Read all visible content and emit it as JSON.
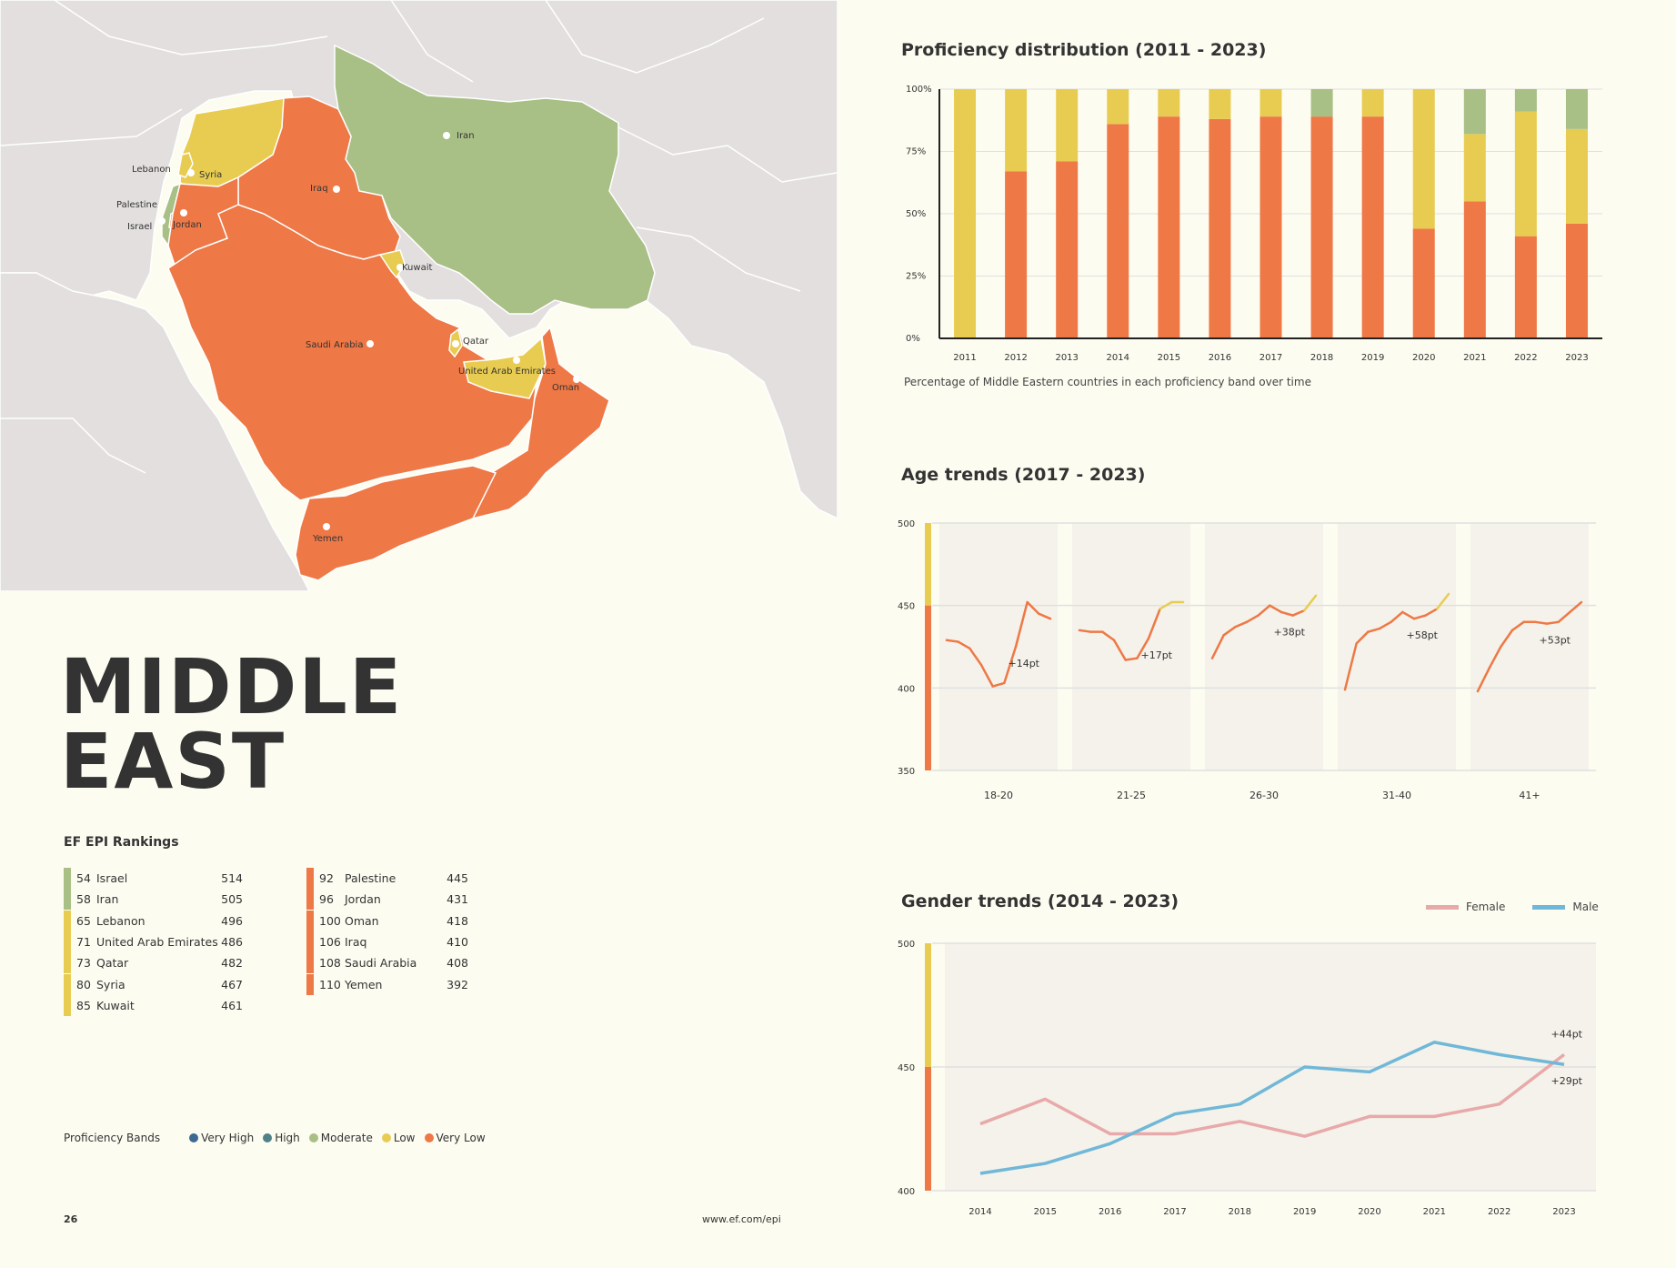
{
  "colors": {
    "very_high": "#3d6a92",
    "high": "#4f8189",
    "moderate": "#a8bf85",
    "low": "#e8cc52",
    "very_low": "#ee7846",
    "land": "#e3dfdf",
    "sea": "#fdfcf1",
    "female": "#e8a9aa",
    "male": "#70b7d8",
    "grid": "#e0e0e0",
    "panel": "#f4f2ea"
  },
  "region_title": [
    "MIDDLE",
    "EAST"
  ],
  "map": {
    "labels": [
      "Iran",
      "Lebanon",
      "Syria",
      "Palestine",
      "Israel",
      "Jordan",
      "Iraq",
      "Kuwait",
      "Saudi Arabia",
      "Qatar",
      "United Arab Emirates",
      "Oman",
      "Yemen"
    ]
  },
  "rankings": {
    "title": "EF EPI Rankings",
    "left": [
      {
        "rank": "54",
        "country": "Israel",
        "score": "514",
        "band": "moderate"
      },
      {
        "rank": "58",
        "country": "Iran",
        "score": "505",
        "band": "moderate"
      },
      {
        "rank": "65",
        "country": "Lebanon",
        "score": "496",
        "band": "low"
      },
      {
        "rank": "71",
        "country": "United Arab Emirates",
        "score": "486",
        "band": "low"
      },
      {
        "rank": "73",
        "country": "Qatar",
        "score": "482",
        "band": "low"
      },
      {
        "rank": "80",
        "country": "Syria",
        "score": "467",
        "band": "low"
      },
      {
        "rank": "85",
        "country": "Kuwait",
        "score": "461",
        "band": "low"
      }
    ],
    "right": [
      {
        "rank": "92",
        "country": "Palestine",
        "score": "445",
        "band": "very_low"
      },
      {
        "rank": "96",
        "country": "Jordan",
        "score": "431",
        "band": "very_low"
      },
      {
        "rank": "100",
        "country": "Oman",
        "score": "418",
        "band": "very_low"
      },
      {
        "rank": "106",
        "country": "Iraq",
        "score": "410",
        "band": "very_low"
      },
      {
        "rank": "108",
        "country": "Saudi Arabia",
        "score": "408",
        "band": "very_low"
      },
      {
        "rank": "110",
        "country": "Yemen",
        "score": "392",
        "band": "very_low"
      }
    ]
  },
  "proficiency_bands": {
    "label": "Proficiency Bands",
    "items": [
      {
        "name": "Very High",
        "key": "very_high"
      },
      {
        "name": "High",
        "key": "high"
      },
      {
        "name": "Moderate",
        "key": "moderate"
      },
      {
        "name": "Low",
        "key": "low"
      },
      {
        "name": "Very Low",
        "key": "very_low"
      }
    ]
  },
  "footer": {
    "page": "26",
    "url": "www.ef.com/epi"
  },
  "chart_data": [
    {
      "type": "bar",
      "stacked": true,
      "title": "Proficiency distribution (2011 - 2023)",
      "caption": "Percentage of Middle Eastern countries in each proficiency band over time",
      "categories": [
        "2011",
        "2012",
        "2013",
        "2014",
        "2015",
        "2016",
        "2017",
        "2018",
        "2019",
        "2020",
        "2021",
        "2022",
        "2023"
      ],
      "ylim": [
        0,
        100
      ],
      "yticks": [
        "0%",
        "25%",
        "50%",
        "75%",
        "100%"
      ],
      "grid": true,
      "series": [
        {
          "key": "very_low",
          "values": [
            0,
            67,
            71,
            86,
            89,
            88,
            89,
            89,
            89,
            44,
            55,
            41,
            46
          ]
        },
        {
          "key": "low",
          "values": [
            100,
            33,
            29,
            14,
            11,
            12,
            11,
            0,
            11,
            56,
            27,
            50,
            38
          ]
        },
        {
          "key": "moderate",
          "values": [
            0,
            0,
            0,
            0,
            0,
            0,
            0,
            11,
            0,
            0,
            18,
            9,
            16
          ]
        }
      ]
    },
    {
      "type": "line",
      "title": "Age trends (2017 - 2023)",
      "ylim": [
        350,
        500
      ],
      "yticks": [
        "500",
        "450",
        "400",
        "350"
      ],
      "groups": [
        {
          "label": "18-20",
          "values": [
            429,
            428,
            424,
            414,
            401,
            403,
            425,
            452,
            445,
            442
          ],
          "change": "+14pt"
        },
        {
          "label": "21-25",
          "values": [
            435,
            434,
            434,
            429,
            417,
            418,
            430,
            448,
            452,
            452
          ],
          "change": "+17pt"
        },
        {
          "label": "26-30",
          "values": [
            418,
            432,
            437,
            440,
            444,
            450,
            446,
            444,
            447,
            456
          ],
          "change": "+38pt"
        },
        {
          "label": "31-40",
          "values": [
            399,
            427,
            434,
            436,
            440,
            446,
            442,
            444,
            448,
            457
          ],
          "change": "+58pt"
        },
        {
          "label": "41+",
          "values": [
            398,
            412,
            425,
            435,
            440,
            440,
            439,
            440,
            446,
            452
          ],
          "change": "+53pt"
        }
      ]
    },
    {
      "type": "line",
      "title": "Gender trends (2014 - 2023)",
      "x": [
        "2014",
        "2015",
        "2016",
        "2017",
        "2018",
        "2019",
        "2020",
        "2021",
        "2022",
        "2023"
      ],
      "ylim": [
        400,
        500
      ],
      "yticks": [
        "500",
        "450",
        "400"
      ],
      "legend": "top-right",
      "series": [
        {
          "name": "Female",
          "key": "female",
          "values": [
            427,
            437,
            423,
            423,
            428,
            422,
            430,
            430,
            435,
            455
          ],
          "change": "+29pt"
        },
        {
          "name": "Male",
          "key": "male",
          "values": [
            407,
            411,
            419,
            431,
            435,
            450,
            448,
            460,
            455,
            451
          ],
          "change": "+44pt"
        }
      ]
    }
  ]
}
